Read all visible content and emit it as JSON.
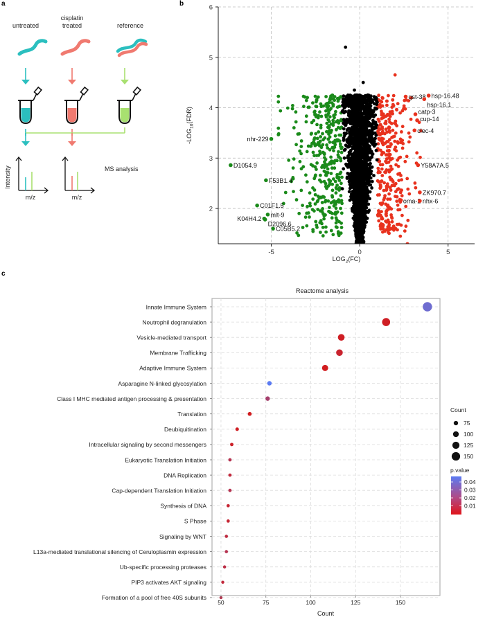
{
  "panel_a": {
    "letter": "a",
    "labels": {
      "untreated": "untreated",
      "cisplatin": "cisplatin",
      "treated": "treated",
      "reference": "reference"
    },
    "ms_label": "MS analysis",
    "y_axis": "Intensity",
    "x_axis": "m/z",
    "colors": {
      "cyan": "#2bbfbf",
      "red": "#f07a70",
      "green": "#a8e070"
    }
  },
  "panel_b": {
    "letter": "b"
  },
  "panel_c": {
    "letter": "c"
  },
  "chart_data": [
    {
      "type": "scatter",
      "title": "",
      "xlabel": "LOG2(FC)",
      "ylabel": "-LOG10(FDR)",
      "xlim": [
        -8,
        6.5
      ],
      "ylim": [
        1.3,
        6
      ],
      "x_ticks": [
        -5,
        0,
        5
      ],
      "y_ticks": [
        2,
        3,
        4,
        5,
        6
      ],
      "grid": true,
      "colors": {
        "down": "#1a8a1a",
        "up": "#e8321e",
        "ns": "#000000"
      },
      "series": [
        {
          "values": []
        },
        {
          "values": []
        },
        {
          "values": []
        }
      ],
      "labeled_points": [
        {
          "label": "gst-38",
          "x": 2.6,
          "y": 4.22,
          "side": "right"
        },
        {
          "label": "hsp-16.48",
          "x": 3.9,
          "y": 4.24,
          "side": "right"
        },
        {
          "label": "hsp-16.1",
          "x": 3.65,
          "y": 4.17,
          "side": "right",
          "text_dy": 8
        },
        {
          "label": "catp-3",
          "x": 3.15,
          "y": 3.87,
          "side": "right",
          "text_dy": -4
        },
        {
          "label": "cup-14",
          "x": 3.25,
          "y": 3.75,
          "side": "right",
          "text_dy": -2
        },
        {
          "label": "clec-4",
          "x": 3.1,
          "y": 3.55,
          "side": "right"
        },
        {
          "label": "Y58A7A.5",
          "x": 3.3,
          "y": 2.86,
          "side": "right"
        },
        {
          "label": "ZK970.7",
          "x": 3.4,
          "y": 2.32,
          "side": "right"
        },
        {
          "label": "oma-2",
          "x": 2.3,
          "y": 2.15,
          "side": "right"
        },
        {
          "label": "nhx-6",
          "x": 3.4,
          "y": 2.15,
          "side": "right"
        },
        {
          "label": "nhr-229",
          "x": -5.0,
          "y": 3.38,
          "side": "left"
        },
        {
          "label": "D1054.9",
          "x": -7.3,
          "y": 2.86,
          "side": "right"
        },
        {
          "label": "F53B1.4",
          "x": -5.3,
          "y": 2.56,
          "side": "right"
        },
        {
          "label": "C01F1.5",
          "x": -5.8,
          "y": 2.06,
          "side": "right"
        },
        {
          "label": "mlt-9",
          "x": -5.2,
          "y": 1.88,
          "side": "right"
        },
        {
          "label": "K04H4.2",
          "x": -5.4,
          "y": 1.8,
          "side": "left"
        },
        {
          "label": "D2096.6",
          "x": -5.35,
          "y": 1.78,
          "side": "right",
          "text_dy": 6
        },
        {
          "label": "C05B5.2",
          "x": -4.9,
          "y": 1.6,
          "side": "right"
        }
      ]
    },
    {
      "type": "scatter",
      "title": "Reactome analysis",
      "xlabel": "Count",
      "ylabel": "",
      "xlim": [
        45,
        172
      ],
      "x_ticks": [
        50,
        75,
        100,
        125,
        150
      ],
      "grid": true,
      "categories": [
        "Innate Immune System",
        "Neutrophil degranulation",
        "Vesicle-mediated transport",
        "Membrane Trafficking",
        "Adaptive Immune System",
        "Asparagine N-linked glycosylation",
        "Class I MHC mediated antigen processing & presentation",
        "Translation",
        "Deubiquitination",
        "Intracellular signaling by second messengers",
        "Eukaryotic Translation Initiation",
        "DNA Replication",
        "Cap-dependent Translation Initiation",
        "Synthesis of DNA",
        "S Phase",
        "Signaling by WNT",
        "L13a-mediated translational silencing of Ceruloplasmin expression",
        "Ub-specific processing proteases",
        "PIP3 activates AKT signaling",
        "Formation of a pool of free 40S subunits"
      ],
      "values": [
        165,
        142,
        117,
        116,
        108,
        77,
        76,
        66,
        59,
        56,
        55,
        55,
        55,
        54,
        54,
        53,
        53,
        52,
        51,
        50
      ],
      "pvalues": [
        0.038,
        0.003,
        0.003,
        0.005,
        0.002,
        0.045,
        0.018,
        0.002,
        0.003,
        0.004,
        0.012,
        0.008,
        0.012,
        0.006,
        0.006,
        0.009,
        0.012,
        0.01,
        0.008,
        0.011
      ],
      "legend": {
        "size_title": "Count",
        "size_values": [
          75,
          100,
          125,
          150
        ],
        "color_title": "p.value",
        "color_ticks": [
          "0.04",
          "0.03",
          "0.02",
          "0.01"
        ],
        "color_high": "#5b7bf2",
        "color_low": "#d41a1a"
      }
    }
  ]
}
